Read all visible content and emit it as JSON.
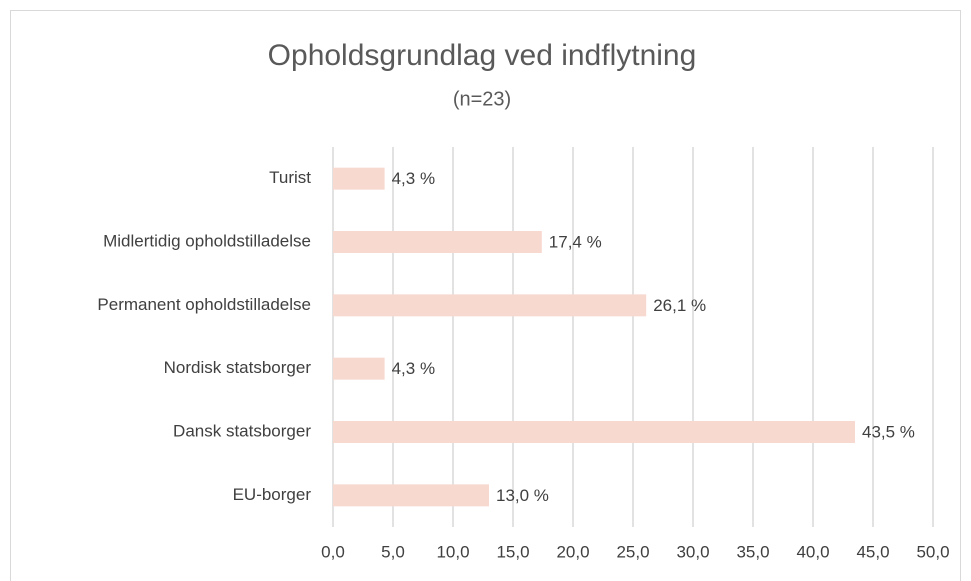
{
  "chart_data": {
    "type": "bar",
    "orientation": "horizontal",
    "title": "Opholdsgrundlag ved indflytning",
    "subtitle": "(n=23)",
    "categories": [
      "Turist",
      "Midlertidig opholdstilladelse",
      "Permanent opholdstilladelse",
      "Nordisk statsborger",
      "Dansk statsborger",
      "EU-borger"
    ],
    "values": [
      4.3,
      17.4,
      26.1,
      4.3,
      43.5,
      13.0
    ],
    "value_labels": [
      "4,3 %",
      "17,4 %",
      "26,1 %",
      "4,3 %",
      "43,5 %",
      "13,0 %"
    ],
    "color": "#f8d9d0",
    "xlim": [
      0,
      50
    ],
    "xticks": [
      {
        "value": 0,
        "label": "0,0"
      },
      {
        "value": 5,
        "label": "5,0"
      },
      {
        "value": 10,
        "label": "10,0"
      },
      {
        "value": 15,
        "label": "15,0"
      },
      {
        "value": 20,
        "label": "20,0"
      },
      {
        "value": 25,
        "label": "25,0"
      },
      {
        "value": 30,
        "label": "30,0"
      },
      {
        "value": 35,
        "label": "35,0"
      },
      {
        "value": 40,
        "label": "40,0"
      },
      {
        "value": 45,
        "label": "45,0"
      },
      {
        "value": 50,
        "label": "50,0"
      }
    ],
    "grid": true
  }
}
